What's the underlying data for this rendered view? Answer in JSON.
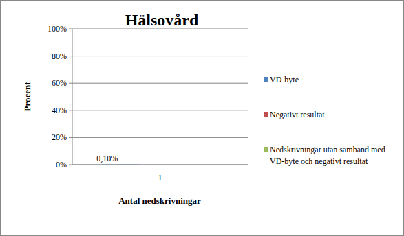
{
  "chart_data": {
    "type": "bar",
    "title": "Hälsovård",
    "x_label": "Antal nedskrivningar",
    "y_label": "Procent",
    "categories": [
      "1"
    ],
    "series": [
      {
        "name": "VD-byte",
        "color": "#4f81bd",
        "values": [
          0.1
        ],
        "value_labels": [
          "0,10%"
        ]
      },
      {
        "name": "Negativt resultat",
        "color": "#c0504d",
        "values": [
          null
        ]
      },
      {
        "name": "Nedskrivningar utan samband med VD-byte och negativt resultat",
        "color": "#9bbb59",
        "values": [
          null
        ]
      }
    ],
    "ylim": [
      0,
      100
    ],
    "yticks": [
      {
        "value": 0,
        "label": "0%"
      },
      {
        "value": 20,
        "label": "20%"
      },
      {
        "value": 40,
        "label": "40%"
      },
      {
        "value": 60,
        "label": "60%"
      },
      {
        "value": 80,
        "label": "80%"
      },
      {
        "value": 100,
        "label": "100%"
      }
    ],
    "grid": true,
    "legend": "right",
    "data_labels": true
  }
}
